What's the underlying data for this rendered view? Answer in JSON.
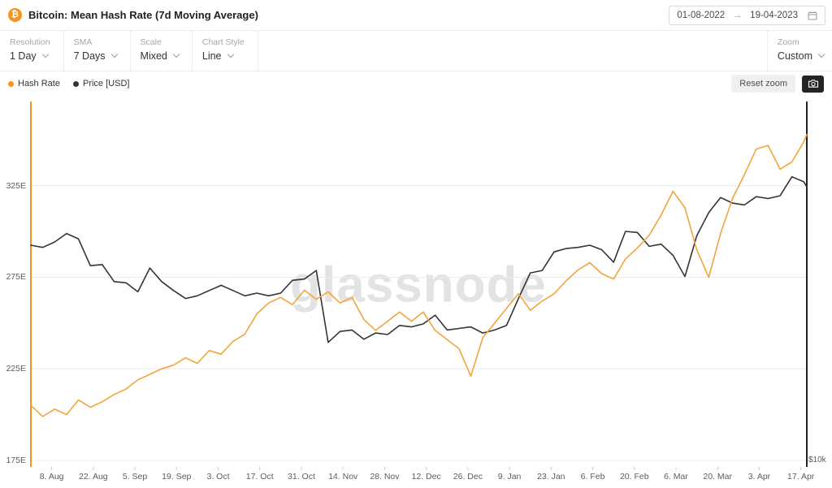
{
  "header": {
    "coin_glyph": "₿",
    "title": "Bitcoin: Mean Hash Rate (7d Moving Average)",
    "date_from": "01-08-2022",
    "date_separator": "→",
    "date_to": "19-04-2023"
  },
  "toolbar": {
    "controls": [
      {
        "label": "Resolution",
        "value": "1 Day"
      },
      {
        "label": "SMA",
        "value": "7 Days"
      },
      {
        "label": "Scale",
        "value": "Mixed"
      },
      {
        "label": "Chart Style",
        "value": "Line"
      }
    ],
    "zoom": {
      "label": "Zoom",
      "value": "Custom"
    }
  },
  "legend": {
    "items": [
      {
        "label": "Hash Rate",
        "color": "#f7931a"
      },
      {
        "label": "Price [USD]",
        "color": "#333333"
      }
    ],
    "reset_zoom_label": "Reset zoom"
  },
  "watermark": "glassnode",
  "chart_data": {
    "type": "line",
    "title": "Bitcoin: Mean Hash Rate (7d Moving Average)",
    "x_range": [
      "2022-08-01",
      "2023-04-19"
    ],
    "grid": true,
    "legend_position": "top-left",
    "dates": [
      "2022-08-01",
      "2022-08-05",
      "2022-08-09",
      "2022-08-13",
      "2022-08-17",
      "2022-08-21",
      "2022-08-25",
      "2022-08-29",
      "2022-09-02",
      "2022-09-06",
      "2022-09-10",
      "2022-09-14",
      "2022-09-18",
      "2022-09-22",
      "2022-09-26",
      "2022-09-30",
      "2022-10-04",
      "2022-10-08",
      "2022-10-12",
      "2022-10-16",
      "2022-10-20",
      "2022-10-24",
      "2022-10-28",
      "2022-11-01",
      "2022-11-05",
      "2022-11-09",
      "2022-11-13",
      "2022-11-17",
      "2022-11-21",
      "2022-11-25",
      "2022-11-29",
      "2022-12-03",
      "2022-12-07",
      "2022-12-11",
      "2022-12-15",
      "2022-12-19",
      "2022-12-23",
      "2022-12-27",
      "2022-12-31",
      "2023-01-04",
      "2023-01-08",
      "2023-01-12",
      "2023-01-16",
      "2023-01-20",
      "2023-01-24",
      "2023-01-28",
      "2023-02-01",
      "2023-02-05",
      "2023-02-09",
      "2023-02-13",
      "2023-02-17",
      "2023-02-21",
      "2023-02-25",
      "2023-03-01",
      "2023-03-05",
      "2023-03-09",
      "2023-03-13",
      "2023-03-17",
      "2023-03-21",
      "2023-03-25",
      "2023-03-29",
      "2023-04-02",
      "2023-04-06",
      "2023-04-10",
      "2023-04-14",
      "2023-04-18",
      "2023-04-19"
    ],
    "series": [
      {
        "name": "Hash Rate",
        "unit": "EH/s",
        "axis": "left",
        "color": "#f2a43d",
        "values": [
          205,
          199,
          203,
          200,
          208,
          204,
          207,
          211,
          214,
          219,
          222,
          225,
          227,
          231,
          228,
          235,
          233,
          240,
          244,
          255,
          261,
          264,
          260,
          268,
          263,
          267,
          261,
          264,
          252,
          246,
          251,
          256,
          251,
          256,
          246,
          241,
          236,
          221,
          242,
          250,
          258,
          266,
          257,
          262,
          266,
          273,
          279,
          283,
          277,
          274,
          285,
          291,
          298,
          309,
          322,
          313,
          290,
          275,
          299,
          318,
          331,
          345,
          347,
          334,
          338,
          349,
          353
        ]
      },
      {
        "name": "Price [USD]",
        "unit": "USD",
        "axis": "right",
        "color": "#343434",
        "values": [
          23300,
          23100,
          23600,
          24400,
          23900,
          21500,
          21600,
          20200,
          20100,
          19400,
          21300,
          20200,
          19500,
          18900,
          19100,
          19500,
          19900,
          19500,
          19100,
          19300,
          19100,
          19300,
          20300,
          20400,
          21100,
          15900,
          16600,
          16700,
          16100,
          16500,
          16400,
          17000,
          16900,
          17100,
          17700,
          16700,
          16800,
          16900,
          16500,
          16700,
          17000,
          18900,
          20900,
          21100,
          22700,
          23000,
          23100,
          23300,
          22900,
          21800,
          24600,
          24500,
          23200,
          23400,
          22400,
          20600,
          24200,
          26500,
          28100,
          27500,
          27300,
          28200,
          28000,
          28300,
          30500,
          29900,
          29300
        ]
      }
    ],
    "left_axis": {
      "scale": "linear",
      "min": 175,
      "max": 371,
      "unit": "EH/s",
      "color": "#f7931a",
      "ticks": [
        {
          "value": 325,
          "label": "325E"
        },
        {
          "value": 275,
          "label": "275E"
        },
        {
          "value": 225,
          "label": "225E"
        },
        {
          "value": 175,
          "label": "175E"
        }
      ]
    },
    "right_axis": {
      "scale": "log",
      "min": 10000,
      "max": 41000,
      "unit": "USD",
      "color": "#222222",
      "ticks": [
        {
          "value": 10000,
          "label": "$10k"
        }
      ]
    },
    "x_ticks": [
      {
        "date": "2022-08-08",
        "label": "8. Aug"
      },
      {
        "date": "2022-08-22",
        "label": "22. Aug"
      },
      {
        "date": "2022-09-05",
        "label": "5. Sep"
      },
      {
        "date": "2022-09-19",
        "label": "19. Sep"
      },
      {
        "date": "2022-10-03",
        "label": "3. Oct"
      },
      {
        "date": "2022-10-17",
        "label": "17. Oct"
      },
      {
        "date": "2022-10-31",
        "label": "31. Oct"
      },
      {
        "date": "2022-11-14",
        "label": "14. Nov"
      },
      {
        "date": "2022-11-28",
        "label": "28. Nov"
      },
      {
        "date": "2022-12-12",
        "label": "12. Dec"
      },
      {
        "date": "2022-12-26",
        "label": "26. Dec"
      },
      {
        "date": "2023-01-09",
        "label": "9. Jan"
      },
      {
        "date": "2023-01-23",
        "label": "23. Jan"
      },
      {
        "date": "2023-02-06",
        "label": "6. Feb"
      },
      {
        "date": "2023-02-20",
        "label": "20. Feb"
      },
      {
        "date": "2023-03-06",
        "label": "6. Mar"
      },
      {
        "date": "2023-03-20",
        "label": "20. Mar"
      },
      {
        "date": "2023-04-03",
        "label": "3. Apr"
      },
      {
        "date": "2023-04-17",
        "label": "17. Apr"
      }
    ]
  }
}
